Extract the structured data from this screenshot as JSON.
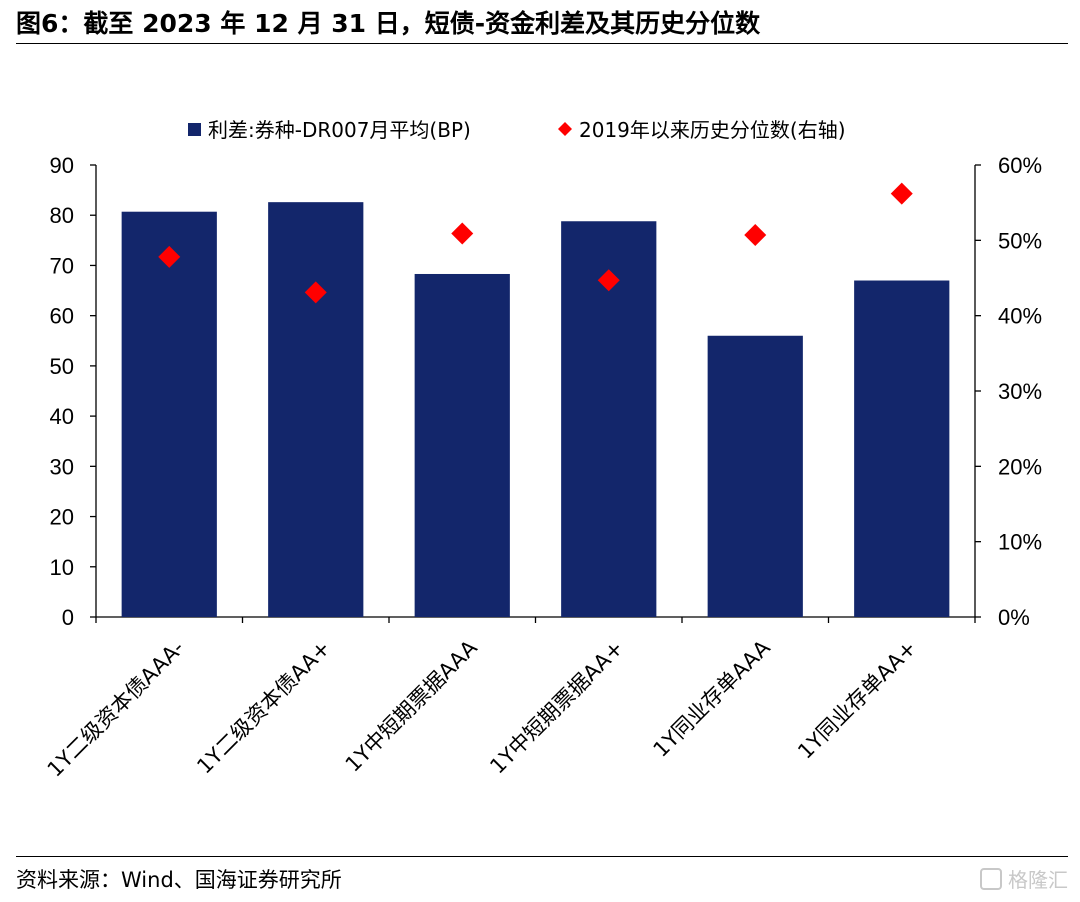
{
  "title": "图6：截至 2023 年 12 月 31 日，短债-资金利差及其历史分位数",
  "source": "资料来源：Wind、国海证券研究所",
  "watermark": "格隆汇",
  "colors": {
    "bar": "#13266b",
    "marker": "#ff0000",
    "axis": "#000000"
  },
  "chart_data": {
    "type": "bar",
    "categories": [
      "1Y二级资本债AAA-",
      "1Y二级资本债AA+",
      "1Y中短期票据AAA",
      "1Y中短期票据AA+",
      "1Y同业存单AAA",
      "1Y同业存单AA+"
    ],
    "series": [
      {
        "name": "利差:券种-DR007月平均(BP)",
        "type": "bar",
        "axis": "left",
        "values": [
          80.7,
          82.6,
          68.3,
          78.8,
          56.0,
          67.0
        ]
      },
      {
        "name": "2019年以来历史分位数(右轴)",
        "type": "scatter",
        "marker": "diamond",
        "axis": "right",
        "values": [
          47.8,
          43.1,
          50.9,
          44.7,
          50.7,
          56.2
        ]
      }
    ],
    "left_axis": {
      "ylim": [
        0,
        90
      ],
      "ticks": [
        "0",
        "10",
        "20",
        "30",
        "40",
        "50",
        "60",
        "70",
        "80",
        "90"
      ]
    },
    "right_axis": {
      "ylim": [
        0,
        60
      ],
      "unit": "%",
      "ticks": [
        "0%",
        "10%",
        "20%",
        "30%",
        "40%",
        "50%",
        "60%"
      ]
    },
    "legend_position": "top",
    "grid": false
  }
}
